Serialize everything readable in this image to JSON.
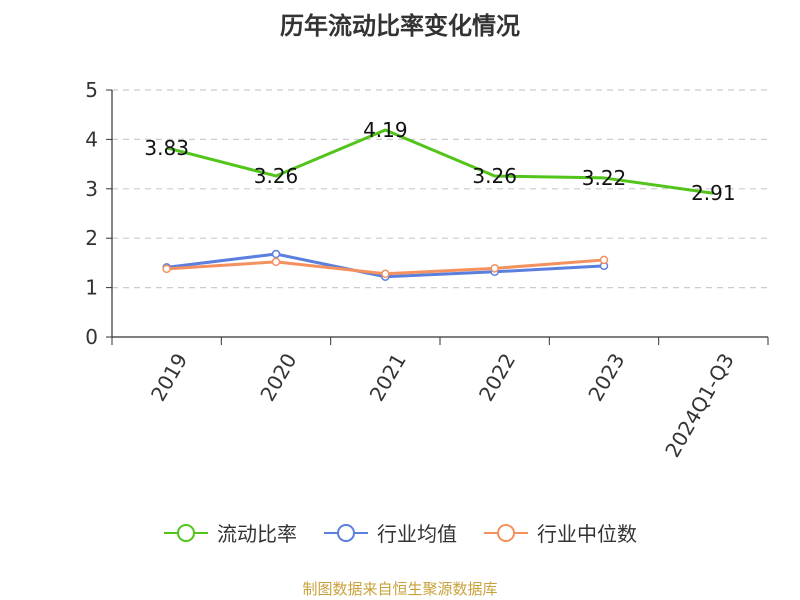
{
  "colors": {
    "series": [
      "#52c41a",
      "#5b7fde",
      "#f4915e"
    ],
    "grid": "#cccccc",
    "axis": "#333333",
    "source": "#c9a13b"
  },
  "chart_data": {
    "type": "line",
    "title": "历年流动比率变化情况",
    "categories": [
      "2019",
      "2020",
      "2021",
      "2022",
      "2023",
      "2024Q1-Q3"
    ],
    "ylim": [
      0,
      5
    ],
    "yticks": [
      "0",
      "1",
      "2",
      "3",
      "4",
      "5"
    ],
    "grid": "horizontal-dashed",
    "legend_position": "bottom",
    "series": [
      {
        "name": "流动比率",
        "values": [
          3.83,
          3.26,
          4.19,
          3.26,
          3.22,
          2.91
        ],
        "labels": [
          "3.83",
          "3.26",
          "4.19",
          "3.26",
          "3.22",
          "2.91"
        ]
      },
      {
        "name": "行业均值",
        "values": [
          1.41,
          1.68,
          1.22,
          1.32,
          1.44,
          null
        ]
      },
      {
        "name": "行业中位数",
        "values": [
          1.38,
          1.52,
          1.28,
          1.39,
          1.56,
          null
        ]
      }
    ]
  },
  "source": "制图数据来自恒生聚源数据库"
}
